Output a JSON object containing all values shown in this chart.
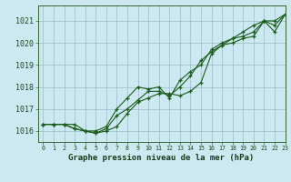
{
  "title": "Graphe pression niveau de la mer (hPa)",
  "background_color": "#cce8f0",
  "grid_color": "#99bbcc",
  "line_color": "#1a5c1a",
  "xlim": [
    -0.5,
    23
  ],
  "ylim": [
    1015.5,
    1021.7
  ],
  "xticks": [
    0,
    1,
    2,
    3,
    4,
    5,
    6,
    7,
    8,
    9,
    10,
    11,
    12,
    13,
    14,
    15,
    16,
    17,
    18,
    19,
    20,
    21,
    22,
    23
  ],
  "yticks": [
    1016,
    1017,
    1018,
    1019,
    1020,
    1021
  ],
  "series": [
    [
      1016.3,
      1016.3,
      1016.3,
      1016.1,
      1016.0,
      1015.9,
      1016.0,
      1016.2,
      1016.8,
      1017.3,
      1017.5,
      1017.7,
      1017.7,
      1017.6,
      1017.8,
      1018.2,
      1019.5,
      1019.9,
      1020.0,
      1020.2,
      1020.3,
      1021.0,
      1021.0,
      1021.3
    ],
    [
      1016.3,
      1016.3,
      1016.3,
      1016.1,
      1016.0,
      1015.9,
      1016.1,
      1016.7,
      1017.0,
      1017.4,
      1017.8,
      1017.8,
      1017.6,
      1018.0,
      1018.5,
      1019.2,
      1019.6,
      1019.9,
      1020.2,
      1020.3,
      1020.5,
      1021.0,
      1020.8,
      1021.3
    ],
    [
      1016.3,
      1016.3,
      1016.3,
      1016.3,
      1016.0,
      1016.0,
      1016.2,
      1017.0,
      1017.5,
      1018.0,
      1017.9,
      1018.0,
      1017.5,
      1018.3,
      1018.7,
      1019.0,
      1019.7,
      1020.0,
      1020.2,
      1020.5,
      1020.8,
      1021.0,
      1020.5,
      1021.3
    ]
  ],
  "figsize": [
    3.2,
    2.0
  ],
  "dpi": 100,
  "xlabel_fontsize": 6.5,
  "ytick_fontsize": 6.0,
  "xtick_fontsize": 4.8,
  "linewidth": 0.8,
  "markersize": 3.5,
  "markeredgewidth": 0.9
}
